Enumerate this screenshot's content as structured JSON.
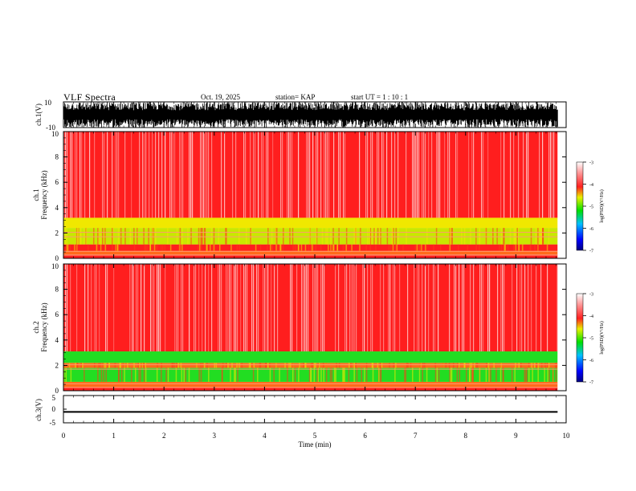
{
  "header": {
    "title": "VLF Spectra",
    "date": "Oct. 19, 2025",
    "station": "station= KAP",
    "start": "start  UT =   1 : 10 : 1"
  },
  "chart_data": [
    {
      "type": "line",
      "id": "ch1-waveform",
      "ylabel": "ch.1(V)",
      "ylim": [
        -10,
        10
      ],
      "yticks": [
        "10",
        "-10"
      ],
      "xlim": [
        0,
        10
      ],
      "data_extent_x": [
        0,
        9.83
      ],
      "description_values": {
        "amplitude_min": -10,
        "amplitude_max": 10
      }
    },
    {
      "type": "heatmap",
      "id": "ch1-spectrogram",
      "ylabel": "ch.1",
      "ylabel2": "Frequency  (kHz)",
      "ylim": [
        0,
        10
      ],
      "yticks": [
        "0",
        "2",
        "4",
        "6",
        "8",
        "10"
      ],
      "xlim": [
        0,
        10
      ],
      "data_extent_x": [
        0,
        9.83
      ],
      "bands_khz": [
        {
          "from": 0,
          "to": 0.3,
          "level": -4.0
        },
        {
          "from": 0.3,
          "to": 0.6,
          "level": -4.3
        },
        {
          "from": 0.6,
          "to": 1.1,
          "level": -4.0
        },
        {
          "from": 1.1,
          "to": 2.4,
          "level": -4.9
        },
        {
          "from": 2.4,
          "to": 3.2,
          "level": -4.6
        },
        {
          "from": 3.2,
          "to": 10,
          "level": -3.9
        }
      ],
      "colorbar": {
        "label": "log(PSD)(V²/Hz)",
        "ticks": [
          "-3",
          "-4",
          "-5",
          "-6",
          "-7"
        ],
        "range": [
          -7,
          -3
        ]
      }
    },
    {
      "type": "heatmap",
      "id": "ch2-spectrogram",
      "ylabel": "ch.2",
      "ylabel2": "Frequency  (kHz)",
      "ylim": [
        0,
        10
      ],
      "yticks": [
        "0",
        "2",
        "4",
        "6",
        "8",
        "10"
      ],
      "xlim": [
        0,
        10
      ],
      "data_extent_x": [
        0,
        9.83
      ],
      "bands_khz": [
        {
          "from": 0,
          "to": 0.3,
          "level": -4.0
        },
        {
          "from": 0.3,
          "to": 0.7,
          "level": -4.4
        },
        {
          "from": 0.7,
          "to": 1.8,
          "level": -5.3
        },
        {
          "from": 1.8,
          "to": 2.2,
          "level": -4.3
        },
        {
          "from": 2.2,
          "to": 3.1,
          "level": -5.2
        },
        {
          "from": 3.1,
          "to": 10,
          "level": -3.9
        }
      ],
      "colorbar": {
        "label": "log(PSD)(V²/Hz)",
        "ticks": [
          "-3",
          "-4",
          "-5",
          "-6",
          "-7"
        ],
        "range": [
          -7,
          -3
        ]
      }
    },
    {
      "type": "line",
      "id": "ch3-waveform",
      "ylabel": "ch.3(V)",
      "ylim": [
        -5,
        5
      ],
      "yticks": [
        "5",
        "0",
        "-5"
      ],
      "xlim": [
        0,
        10
      ],
      "data_extent_x": [
        0,
        9.83
      ],
      "description_values": {
        "amplitude_min": -1.3,
        "amplitude_max": -0.7
      }
    }
  ],
  "xaxis": {
    "label": "Time  (min)",
    "ticks": [
      "0",
      "1",
      "2",
      "3",
      "4",
      "5",
      "6",
      "7",
      "8",
      "9",
      "10"
    ]
  },
  "colors": {
    "background": "#ffffff",
    "axis": "#000000",
    "spec_red": "#ff1a1a",
    "spec_yellow": "#f0e800",
    "spec_green": "#22dd22"
  }
}
